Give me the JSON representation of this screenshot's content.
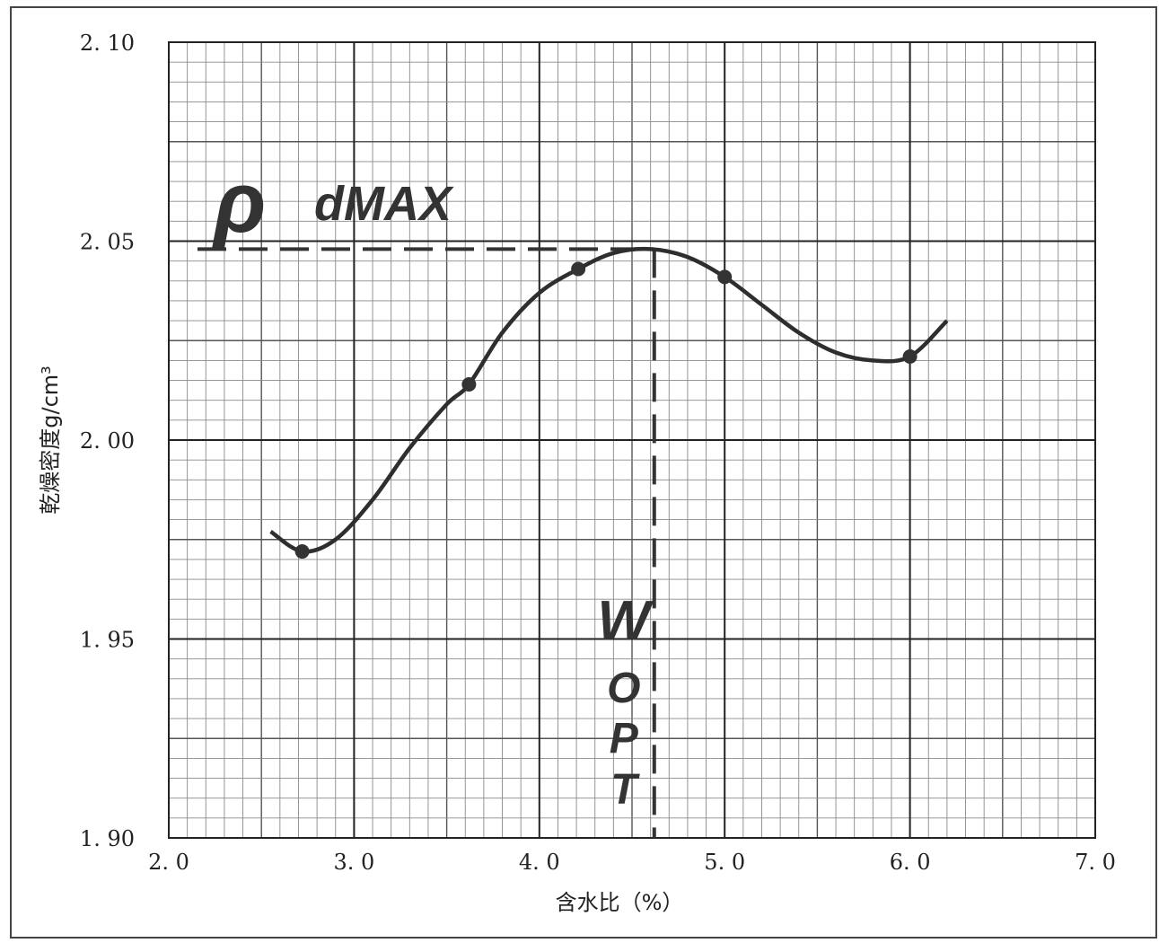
{
  "chart_data": {
    "type": "line",
    "title": "",
    "xlabel": "含水比（%）",
    "ylabel": "乾燥密度g/cm³",
    "xlim": [
      2.0,
      7.0
    ],
    "ylim": [
      1.9,
      2.1
    ],
    "x_ticks": [
      "2. 0",
      "3. 0",
      "4. 0",
      "5. 0",
      "6. 0",
      "7. 0"
    ],
    "y_ticks": [
      "1. 90",
      "1. 95",
      "2. 00",
      "2. 05",
      "2. 10"
    ],
    "x_tick_values": [
      2.0,
      3.0,
      4.0,
      5.0,
      6.0,
      7.0
    ],
    "y_tick_values": [
      1.9,
      1.95,
      2.0,
      2.05,
      2.1
    ],
    "grid": true,
    "series": [
      {
        "x": [
          2.72,
          3.62,
          4.21,
          5.0,
          6.0
        ],
        "y": [
          1.972,
          2.014,
          2.043,
          2.041,
          2.021
        ],
        "marker": "circle",
        "color": "#333333"
      }
    ],
    "fitted_curve": {
      "x": [
        2.55,
        2.72,
        2.9,
        3.1,
        3.3,
        3.5,
        3.62,
        3.8,
        4.0,
        4.21,
        4.4,
        4.6,
        4.8,
        5.0,
        5.2,
        5.4,
        5.6,
        5.8,
        6.0,
        6.2
      ],
      "y": [
        1.977,
        1.972,
        1.975,
        1.985,
        1.998,
        2.009,
        2.014,
        2.027,
        2.037,
        2.043,
        2.047,
        2.048,
        2.046,
        2.041,
        2.034,
        2.027,
        2.022,
        2.02,
        2.021,
        2.03
      ]
    },
    "annotations": {
      "rho_dmax": {
        "symbol": "ρ",
        "text": "dMAX",
        "y": 2.048
      },
      "w_opt": {
        "letters": [
          "W",
          "O",
          "P",
          "T"
        ],
        "x": 4.62
      }
    }
  }
}
